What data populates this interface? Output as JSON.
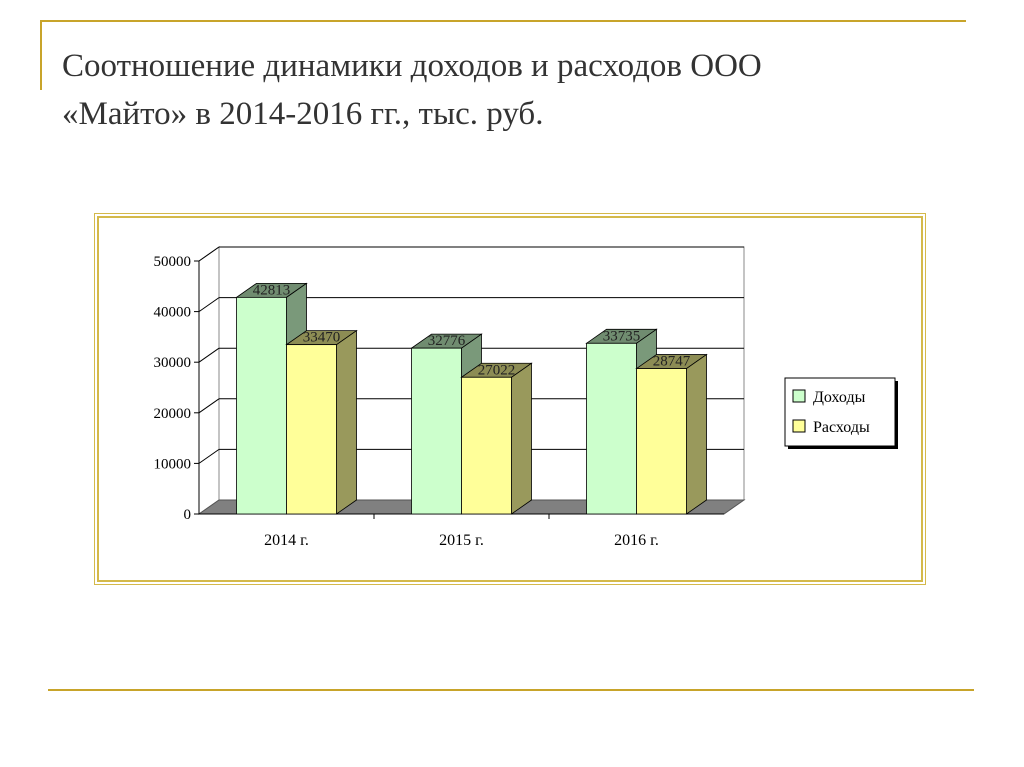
{
  "slide": {
    "title_line1": "Соотношение динамики доходов и расходов ООО",
    "title_line2": "«Майто» в 2014-2016 гг., тыс. руб."
  },
  "colors": {
    "rule": "#c8a42a",
    "income": "#ccffcc",
    "expenses": "#ffff99"
  },
  "chart_data": {
    "type": "bar",
    "categories": [
      "2014 г.",
      "2015 г.",
      "2016 г."
    ],
    "series": [
      {
        "name": "Доходы",
        "values": [
          42813,
          32776,
          33735
        ]
      },
      {
        "name": "Расходы",
        "values": [
          33470,
          27022,
          28747
        ]
      }
    ],
    "data_labels": [
      [
        "42813",
        "32776",
        "33735"
      ],
      [
        "33470",
        "27022",
        "28747"
      ]
    ],
    "ylim": [
      0,
      50000
    ],
    "yticks": [
      0,
      10000,
      20000,
      30000,
      40000,
      50000
    ],
    "ytick_labels": [
      "0",
      "10000",
      "20000",
      "30000",
      "40000",
      "50000"
    ],
    "grid": true,
    "three_d": true,
    "legend_position": "right"
  }
}
